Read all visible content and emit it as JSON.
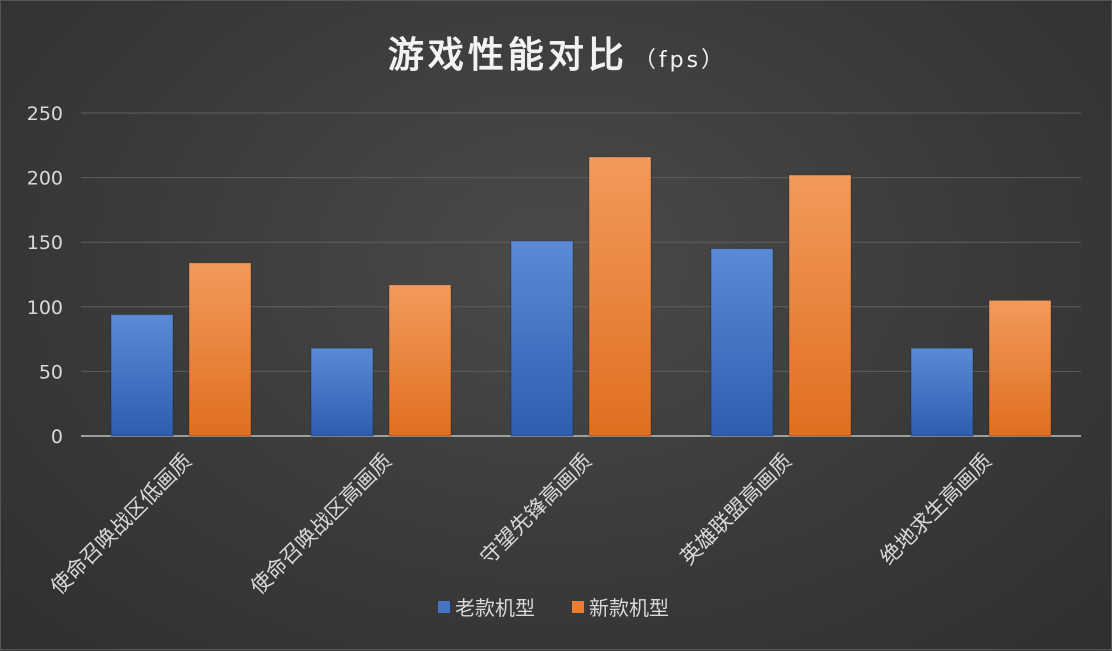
{
  "chart_data": {
    "type": "bar",
    "title": "游戏性能对比",
    "title_unit": "（fps）",
    "categories": [
      "使命召唤战区低画质",
      "使命召唤战区高画质",
      "守望先锋高画质",
      "英雄联盟高画质",
      "绝地求生高画质"
    ],
    "series": [
      {
        "name": "老款机型",
        "color": "#4472c4",
        "values": [
          94,
          68,
          151,
          145,
          68
        ]
      },
      {
        "name": "新款机型",
        "color": "#ed7d31",
        "values": [
          134,
          117,
          216,
          202,
          105
        ]
      }
    ],
    "yticks": [
      0,
      50,
      100,
      150,
      200,
      250
    ],
    "ylim": [
      0,
      250
    ],
    "grid": true,
    "legend_position": "bottom"
  }
}
